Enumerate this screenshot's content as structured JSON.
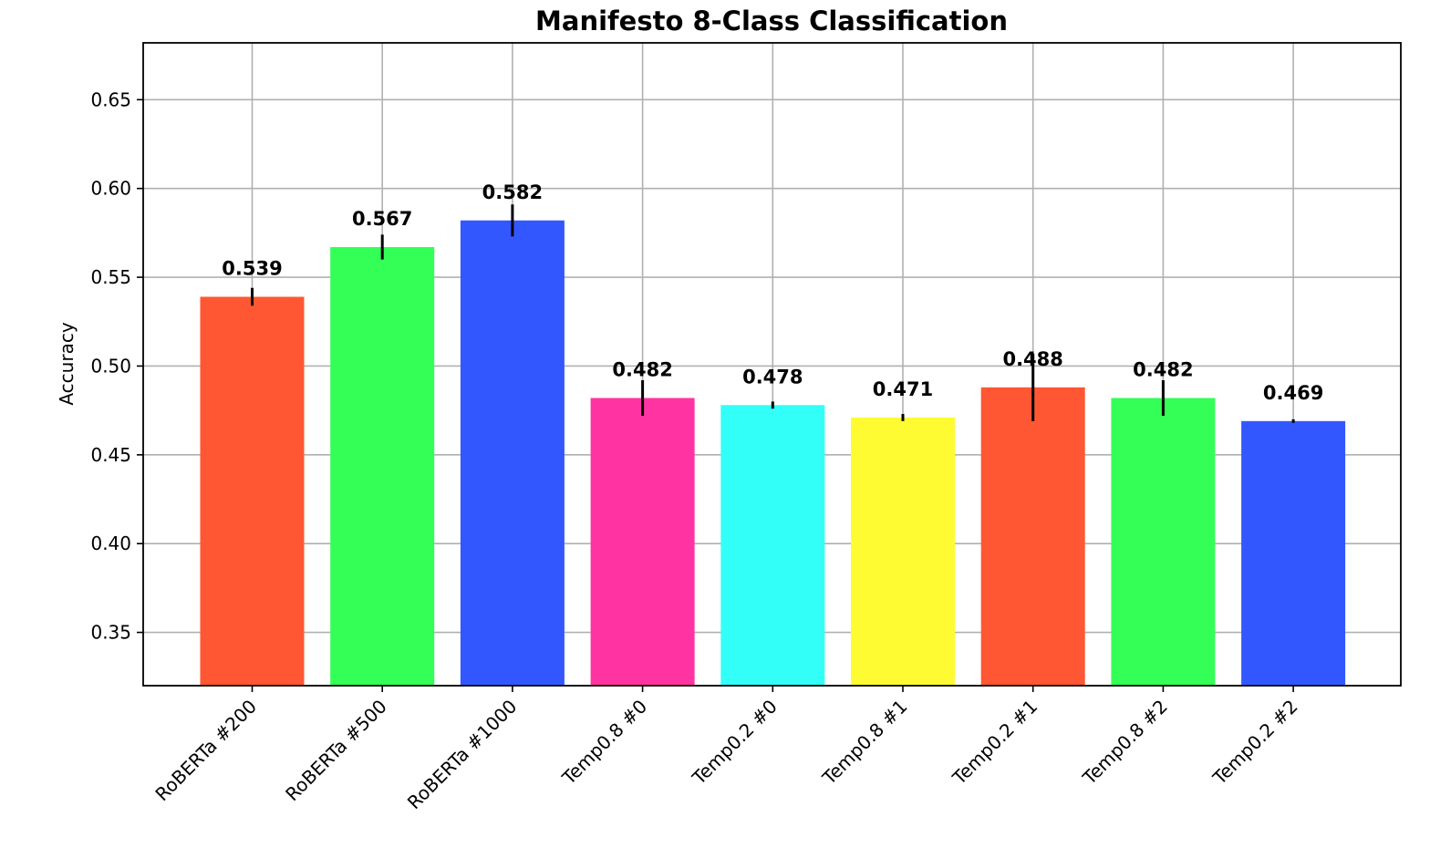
{
  "chart_data": {
    "type": "bar",
    "title": "Manifesto 8-Class Classification",
    "ylabel": "Accuracy",
    "xlabel": "",
    "ylim": [
      0.32,
      0.682
    ],
    "yticks": [
      "0.35",
      "0.40",
      "0.45",
      "0.50",
      "0.55",
      "0.60",
      "0.65"
    ],
    "grid": true,
    "categories": [
      "RoBERTa #200",
      "RoBERTa #500",
      "RoBERTa #1000",
      "Temp0.8 #0",
      "Temp0.2 #0",
      "Temp0.8 #1",
      "Temp0.2 #1",
      "Temp0.8 #2",
      "Temp0.2 #2"
    ],
    "values": [
      0.539,
      0.567,
      0.582,
      0.482,
      0.478,
      0.471,
      0.488,
      0.482,
      0.469
    ],
    "value_labels": [
      "0.539",
      "0.567",
      "0.582",
      "0.482",
      "0.478",
      "0.471",
      "0.488",
      "0.482",
      "0.469"
    ],
    "errors": [
      0.005,
      0.007,
      0.009,
      0.01,
      0.002,
      0.002,
      0.019,
      0.01,
      0.001
    ],
    "colors": [
      "#ff5733",
      "#33ff57",
      "#3357ff",
      "#ff33a1",
      "#33fff9",
      "#fffb33",
      "#ff5733",
      "#33ff57",
      "#3357ff"
    ]
  }
}
